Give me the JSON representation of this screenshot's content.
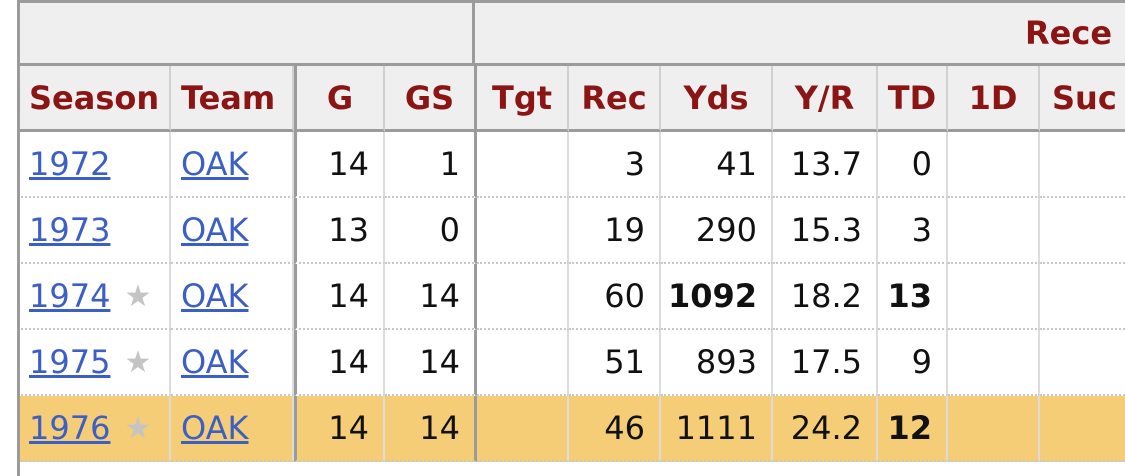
{
  "over_header": {
    "receiving_label": "Rece"
  },
  "columns": {
    "season": "Season",
    "team": "Team",
    "g": "G",
    "gs": "GS",
    "tgt": "Tgt",
    "rec": "Rec",
    "yds": "Yds",
    "yr": "Y/R",
    "td": "TD",
    "first_downs": "1D",
    "succ": "Suc"
  },
  "rows": [
    {
      "season": "1972",
      "star": "",
      "team": "OAK",
      "g": "14",
      "gs": "1",
      "tgt": "",
      "rec": "3",
      "yds": "41",
      "yr": "13.7",
      "td": "0",
      "first_downs": "",
      "succ": ""
    },
    {
      "season": "1973",
      "star": "",
      "team": "OAK",
      "g": "13",
      "gs": "0",
      "tgt": "",
      "rec": "19",
      "yds": "290",
      "yr": "15.3",
      "td": "3",
      "first_downs": "",
      "succ": ""
    },
    {
      "season": "1974",
      "star": "★",
      "team": "OAK",
      "g": "14",
      "gs": "14",
      "tgt": "",
      "rec": "60",
      "yds": "1092",
      "yr": "18.2",
      "td": "13",
      "first_downs": "",
      "succ": ""
    },
    {
      "season": "1975",
      "star": "★",
      "team": "OAK",
      "g": "14",
      "gs": "14",
      "tgt": "",
      "rec": "51",
      "yds": "893",
      "yr": "17.5",
      "td": "9",
      "first_downs": "",
      "succ": ""
    },
    {
      "season": "1976",
      "star": "★",
      "team": "OAK",
      "g": "14",
      "gs": "14",
      "tgt": "",
      "rec": "46",
      "yds": "1111",
      "yr": "24.2",
      "td": "12",
      "first_downs": "",
      "succ": ""
    }
  ],
  "colors": {
    "header_text": "#8b1414",
    "highlight_row": "#f5cd76",
    "link": "#3b5fc4"
  }
}
